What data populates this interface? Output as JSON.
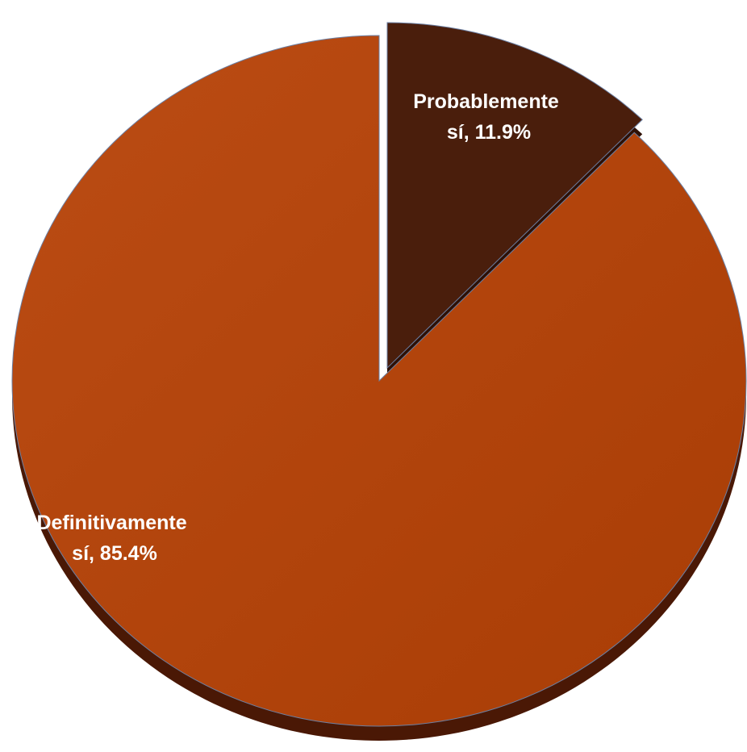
{
  "chart_data": {
    "type": "pie",
    "title": "",
    "slices": [
      {
        "label_line1": "Probablemente",
        "label_line2": "sí, 11.9%",
        "name": "Probablemente sí",
        "value": 11.9,
        "color": "#4a1e0c",
        "exploded": true
      },
      {
        "label_line1": "Definitivamente",
        "label_line2": "sí, 85.4%",
        "name": "Definitivamente sí",
        "value": 85.4,
        "color": "#b2430f",
        "exploded": false
      }
    ],
    "total": 100
  }
}
